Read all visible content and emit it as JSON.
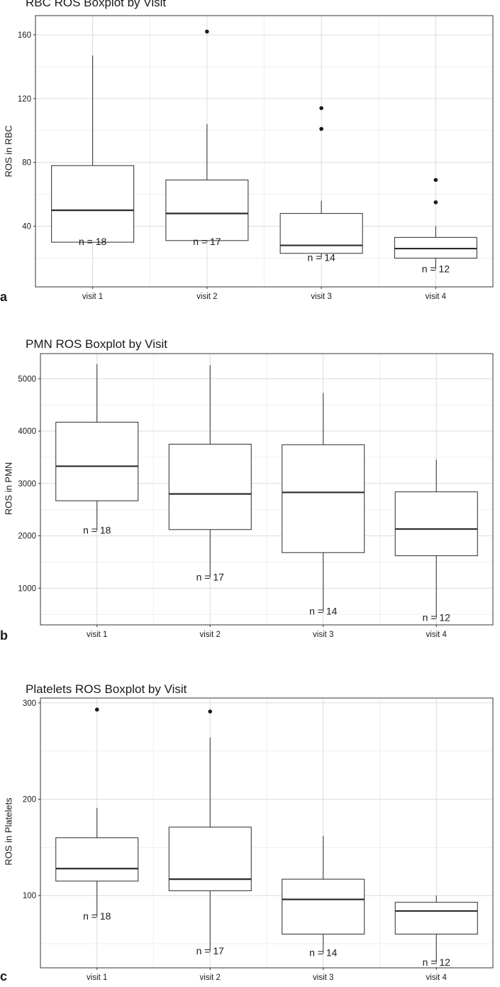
{
  "chart_data": [
    {
      "type": "boxplot",
      "panel": "a",
      "title": "RBC ROS Boxplot by Visit",
      "ylabel": "ROS in RBC",
      "xlabel": "",
      "categories": [
        "visit 1",
        "visit 2",
        "visit 3",
        "visit 4"
      ],
      "ylim": [
        2,
        172
      ],
      "yticks": [
        40,
        80,
        120,
        160
      ],
      "grid": true,
      "boxes": [
        {
          "category": "visit 1",
          "whisker_low": 30,
          "q1": 30,
          "median": 50,
          "q3": 78,
          "whisker_high": 147,
          "outliers": [],
          "n_label": "n = 18"
        },
        {
          "category": "visit 2",
          "whisker_low": 30,
          "q1": 31,
          "median": 48,
          "q3": 69,
          "whisker_high": 104,
          "outliers": [
            162
          ],
          "n_label": "n = 17"
        },
        {
          "category": "visit 3",
          "whisker_low": 20,
          "q1": 23,
          "median": 28,
          "q3": 48,
          "whisker_high": 56,
          "outliers": [
            101,
            114
          ],
          "n_label": "n = 14"
        },
        {
          "category": "visit 4",
          "whisker_low": 13,
          "q1": 20,
          "median": 26,
          "q3": 33,
          "whisker_high": 40,
          "outliers": [
            55,
            69
          ],
          "n_label": "n = 12"
        }
      ]
    },
    {
      "type": "boxplot",
      "panel": "b",
      "title": "PMN ROS Boxplot by Visit",
      "ylabel": "ROS in PMN",
      "xlabel": "",
      "categories": [
        "visit 1",
        "visit 2",
        "visit 3",
        "visit 4"
      ],
      "ylim": [
        300,
        5480
      ],
      "yticks": [
        1000,
        2000,
        3000,
        4000,
        5000
      ],
      "grid": true,
      "boxes": [
        {
          "category": "visit 1",
          "whisker_low": 2100,
          "q1": 2670,
          "median": 3330,
          "q3": 4170,
          "whisker_high": 5280,
          "outliers": [],
          "n_label": "n = 18"
        },
        {
          "category": "visit 2",
          "whisker_low": 1200,
          "q1": 2120,
          "median": 2800,
          "q3": 3750,
          "whisker_high": 5260,
          "outliers": [],
          "n_label": "n = 17"
        },
        {
          "category": "visit 3",
          "whisker_low": 550,
          "q1": 1680,
          "median": 2830,
          "q3": 3740,
          "whisker_high": 4730,
          "outliers": [],
          "n_label": "n = 14"
        },
        {
          "category": "visit 4",
          "whisker_low": 430,
          "q1": 1620,
          "median": 2130,
          "q3": 2840,
          "whisker_high": 3460,
          "outliers": [],
          "n_label": "n = 12"
        }
      ]
    },
    {
      "type": "boxplot",
      "panel": "c",
      "title": "Platelets ROS Boxplot by Visit",
      "ylabel": "ROS in Platelets",
      "xlabel": "",
      "categories": [
        "visit 1",
        "visit 2",
        "visit 3",
        "visit 4"
      ],
      "ylim": [
        25,
        305
      ],
      "yticks": [
        100,
        200,
        300
      ],
      "grid": true,
      "boxes": [
        {
          "category": "visit 1",
          "whisker_low": 78,
          "q1": 115,
          "median": 128,
          "q3": 160,
          "whisker_high": 191,
          "outliers": [
            293
          ],
          "n_label": "n = 18"
        },
        {
          "category": "visit 2",
          "whisker_low": 42,
          "q1": 105,
          "median": 117,
          "q3": 171,
          "whisker_high": 264,
          "outliers": [
            291
          ],
          "n_label": "n = 17"
        },
        {
          "category": "visit 3",
          "whisker_low": 40,
          "q1": 60,
          "median": 96,
          "q3": 117,
          "whisker_high": 162,
          "outliers": [],
          "n_label": "n = 14"
        },
        {
          "category": "visit 4",
          "whisker_low": 30,
          "q1": 60,
          "median": 84,
          "q3": 93,
          "whisker_high": 100,
          "outliers": [],
          "n_label": "n = 12"
        }
      ]
    }
  ],
  "panel_letters": [
    "a",
    "b",
    "c"
  ],
  "colors": {
    "frame": "#333333",
    "grid_major": "#dcdcdc",
    "grid_minor": "#efefef",
    "box_stroke": "#2b2b2b",
    "box_fill": "#ffffff",
    "outlier": "#1a1a1a",
    "text": "#1a1a1a"
  }
}
